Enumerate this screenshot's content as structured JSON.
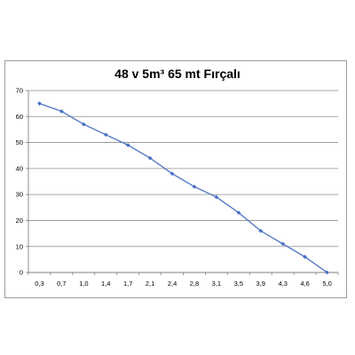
{
  "chart_data": {
    "type": "line",
    "title": "48 v 5m³ 65 mt Fırçalı",
    "xlabel": "",
    "ylabel": "",
    "categories": [
      "0,3",
      "0,7",
      "1,0",
      "1,4",
      "1,7",
      "2,1",
      "2,4",
      "2,8",
      "3,1",
      "3,5",
      "3,9",
      "4,3",
      "4,6",
      "5,0"
    ],
    "series": [
      {
        "values": [
          65,
          62,
          57,
          53,
          49,
          44,
          38,
          33,
          29,
          23,
          16,
          11,
          6,
          0
        ]
      }
    ],
    "ylim": [
      0,
      70
    ],
    "yticks": [
      0,
      10,
      20,
      30,
      40,
      50,
      60,
      70
    ],
    "grid": true,
    "legend": "none",
    "line_color": "#4a72c4",
    "grid_color": "#8c8c8c"
  }
}
